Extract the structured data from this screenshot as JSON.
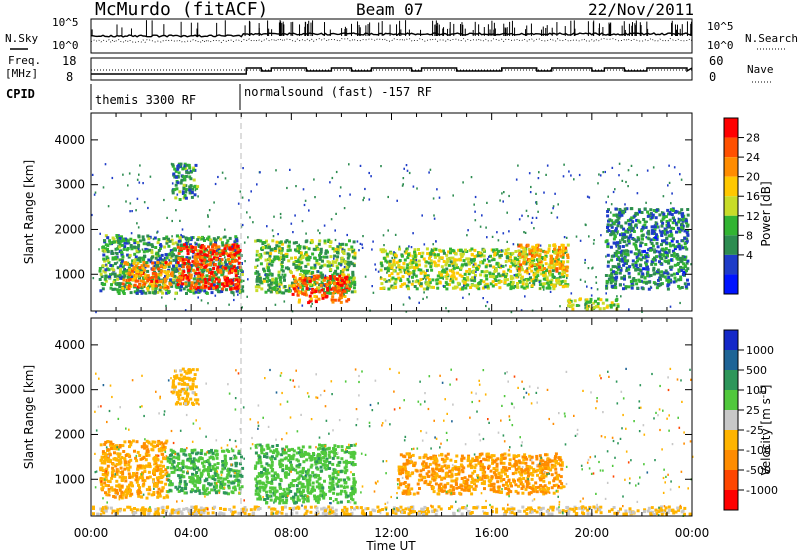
{
  "header": {
    "station": "McMurdo (fitACF)",
    "beam": "Beam 07",
    "date": "22/Nov/2011"
  },
  "strip_labels": {
    "nsky": "N.Sky",
    "nsearch": "N.Search",
    "freq": "Freq.",
    "mhz": "[MHz]",
    "nave": "Nave",
    "cpid": "CPID",
    "noise_tick_hi": "10^5",
    "noise_tick_lo": "10^0",
    "freq_tick_hi": "18",
    "freq_tick_lo": "8",
    "nave_tick_hi": "60",
    "nave_tick_lo": "0"
  },
  "cpid_segments": [
    {
      "label": "themis 3300 RF",
      "start": "00:00",
      "end": "06:10"
    },
    {
      "label": "normalsound (fast) -157 RF",
      "start": "06:10",
      "end": "24:00"
    }
  ],
  "power_colorbar": {
    "label": "Power [dB]",
    "ticks": [
      "28",
      "24",
      "20",
      "16",
      "12",
      "8",
      "4"
    ],
    "colors": [
      "#ff0000",
      "#ff5000",
      "#ff8c00",
      "#ffc800",
      "#c8dc28",
      "#32b432",
      "#2d8c50",
      "#1e3cc8",
      "#0014ff"
    ]
  },
  "velocity_colorbar": {
    "label": "Velocity [m s",
    "label_sup": "-1",
    "label_end": "]",
    "ticks": [
      "1000",
      "500",
      "100",
      "25",
      "-25",
      "-100",
      "-500",
      "-1000"
    ],
    "colors": [
      "#1428c8",
      "#1e6496",
      "#2d965a",
      "#50c83c",
      "#c8c8c8",
      "#ffb400",
      "#ff8c00",
      "#ff4600",
      "#ff0000"
    ]
  },
  "x_axis": {
    "label": "Time UT",
    "ticks": [
      "00:00",
      "04:00",
      "08:00",
      "12:00",
      "16:00",
      "20:00",
      "00:00"
    ]
  },
  "y_axis": {
    "label": "Slant Range [km]",
    "ticks": [
      "4000",
      "3000",
      "2000",
      "1000"
    ]
  },
  "chart_data": [
    {
      "type": "heatmap",
      "panel": "power",
      "xlabel": "Time UT",
      "ylabel": "Slant Range [km]",
      "x_unit": "hours UT",
      "xlim": [
        0,
        24
      ],
      "ylim": [
        180,
        4600
      ],
      "colorbar_label": "Power [dB]",
      "clim": [
        0,
        30
      ],
      "echo_regions": [
        {
          "t0": 0.3,
          "t1": 6.0,
          "r0": 600,
          "r1": 1900,
          "level_db": 10
        },
        {
          "t0": 1.2,
          "t1": 3.2,
          "r0": 700,
          "r1": 1300,
          "level_db": 22
        },
        {
          "t0": 3.4,
          "t1": 5.9,
          "r0": 700,
          "r1": 1700,
          "level_db": 26
        },
        {
          "t0": 3.2,
          "t1": 4.2,
          "r0": 2700,
          "r1": 3500,
          "level_db": 10
        },
        {
          "t0": 6.5,
          "t1": 10.5,
          "r0": 600,
          "r1": 1800,
          "level_db": 12
        },
        {
          "t0": 8.0,
          "t1": 10.3,
          "r0": 400,
          "r1": 1000,
          "level_db": 24
        },
        {
          "t0": 11.5,
          "t1": 19.0,
          "r0": 700,
          "r1": 1600,
          "level_db": 14
        },
        {
          "t0": 17.0,
          "t1": 19.0,
          "r0": 1100,
          "r1": 1700,
          "level_db": 20
        },
        {
          "t0": 19.0,
          "t1": 21.0,
          "r0": 250,
          "r1": 500,
          "level_db": 14
        },
        {
          "t0": 20.5,
          "t1": 23.8,
          "r0": 700,
          "r1": 2500,
          "level_db": 8
        }
      ]
    },
    {
      "type": "heatmap",
      "panel": "velocity",
      "xlabel": "Time UT",
      "ylabel": "Slant Range [km]",
      "x_unit": "hours UT",
      "xlim": [
        0,
        24
      ],
      "ylim": [
        180,
        4600
      ],
      "colorbar_label": "Velocity [m s-1]",
      "clim": [
        -1000,
        1000
      ],
      "echo_regions": [
        {
          "t0": 0.3,
          "t1": 3.0,
          "r0": 600,
          "r1": 1900,
          "velocity": -300
        },
        {
          "t0": 3.0,
          "t1": 6.0,
          "r0": 700,
          "r1": 1700,
          "velocity": 300
        },
        {
          "t0": 3.2,
          "t1": 4.2,
          "r0": 2700,
          "r1": 3500,
          "velocity": -200
        },
        {
          "t0": 6.5,
          "t1": 10.5,
          "r0": 500,
          "r1": 1800,
          "velocity": 250
        },
        {
          "t0": 12.2,
          "t1": 18.8,
          "r0": 700,
          "r1": 1600,
          "velocity": -350
        },
        {
          "t0": 0.0,
          "t1": 24.0,
          "r0": 200,
          "r1": 420,
          "velocity": -150
        }
      ]
    }
  ]
}
